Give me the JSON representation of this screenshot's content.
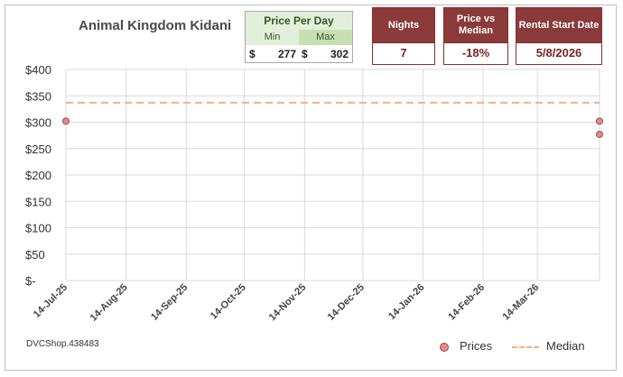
{
  "title": "Animal Kingdom Kidani",
  "price_per_day": {
    "header": "Price Per Day",
    "min_label": "Min",
    "max_label": "Max",
    "currency": "$",
    "min_value": "277",
    "max_value": "302"
  },
  "kpis": {
    "nights_label": "Nights",
    "nights_value": "7",
    "median_label": "Price vs Median",
    "median_value": "-18%",
    "start_label": "Rental Start Date",
    "start_value": "5/8/2026"
  },
  "source": "DVCShop.438483",
  "legend": {
    "prices": "Prices",
    "median": "Median"
  },
  "colors": {
    "kpi_header": "#8b3a3a",
    "kpi_value_text": "#7b2323",
    "ppd_header_bg": "#e2efda",
    "price_dot": "#e38b8b",
    "median_line": "#f4b183",
    "grid": "#d9d9d9"
  },
  "chart_data": {
    "type": "scatter",
    "x_axis": {
      "type": "date",
      "min": "2025-07-14",
      "max": "2026-04-15",
      "ticks": [
        {
          "date": "2025-07-14",
          "label": "14-Jul-25"
        },
        {
          "date": "2025-08-14",
          "label": "14-Aug-25"
        },
        {
          "date": "2025-09-14",
          "label": "14-Sep-25"
        },
        {
          "date": "2025-10-14",
          "label": "14-Oct-25"
        },
        {
          "date": "2025-11-14",
          "label": "14-Nov-25"
        },
        {
          "date": "2025-12-14",
          "label": "14-Dec-25"
        },
        {
          "date": "2026-01-14",
          "label": "14-Jan-26"
        },
        {
          "date": "2026-02-14",
          "label": "14-Feb-26"
        },
        {
          "date": "2026-03-14",
          "label": "14-Mar-26"
        }
      ]
    },
    "y_axis": {
      "min": 0,
      "max": 400,
      "ticks": [
        {
          "value": 400,
          "label": "$400"
        },
        {
          "value": 350,
          "label": "$350"
        },
        {
          "value": 300,
          "label": "$300"
        },
        {
          "value": 250,
          "label": "$250"
        },
        {
          "value": 200,
          "label": "$200"
        },
        {
          "value": 150,
          "label": "$150"
        },
        {
          "value": 100,
          "label": "$100"
        },
        {
          "value": 50,
          "label": "$50"
        },
        {
          "value": 0,
          "label": "$-"
        }
      ]
    },
    "grid": true,
    "legend_position": "bottom-right",
    "series": [
      {
        "name": "Prices",
        "kind": "scatter",
        "points": [
          {
            "x": "2025-07-14",
            "y": 302
          },
          {
            "x": "2026-04-15",
            "y": 302
          },
          {
            "x": "2026-04-15",
            "y": 277
          }
        ]
      },
      {
        "name": "Median",
        "kind": "line",
        "style": "dashed",
        "y": 337
      }
    ]
  }
}
